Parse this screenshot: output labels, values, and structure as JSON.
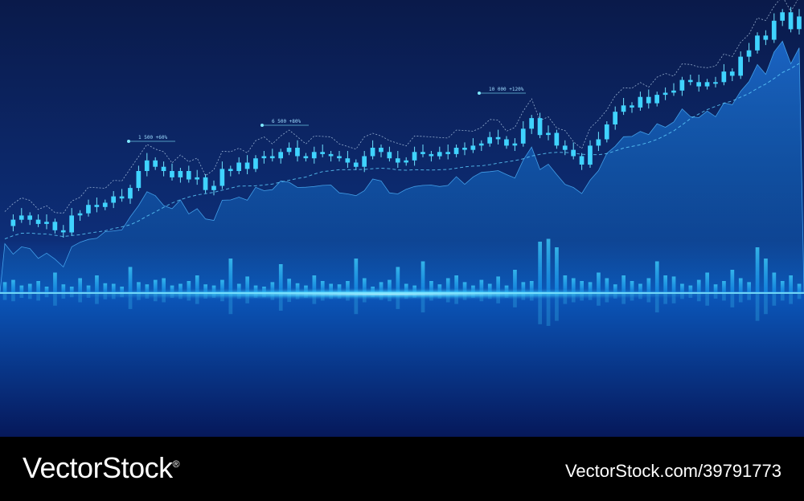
{
  "chart_data": {
    "type": "candlestick",
    "title": "",
    "xlabel": "",
    "ylabel": "",
    "grid": false,
    "colors": {
      "background_top": "#0a1a4a",
      "background_bottom": "#0b3a8c",
      "candle": "#3fd3ff",
      "glow": "#5fe0ff"
    },
    "annotations": [
      {
        "text": "1 500 +60%"
      },
      {
        "text": "6 500 +80%"
      },
      {
        "text": "10 000 +120%"
      }
    ],
    "price": [
      47,
      50,
      52,
      50,
      48,
      49,
      45,
      44,
      52,
      53,
      57,
      56,
      58,
      61,
      60,
      65,
      73,
      78,
      75,
      73,
      70,
      73,
      69,
      70,
      64,
      66,
      74,
      73,
      77,
      74,
      79,
      80,
      79,
      82,
      84,
      80,
      79,
      82,
      81,
      80,
      79,
      77,
      75,
      80,
      84,
      82,
      79,
      77,
      78,
      82,
      81,
      80,
      82,
      81,
      84,
      83,
      85,
      86,
      89,
      88,
      85,
      86,
      93,
      98,
      90,
      91,
      85,
      83,
      80,
      76,
      85,
      88,
      95,
      101,
      104,
      103,
      108,
      105,
      109,
      110,
      111,
      116,
      115,
      113,
      115,
      115,
      120,
      118,
      127,
      130,
      137,
      135,
      144,
      148,
      140,
      146
    ],
    "volume": [
      18,
      22,
      12,
      15,
      20,
      10,
      35,
      14,
      10,
      25,
      12,
      30,
      16,
      15,
      10,
      45,
      18,
      14,
      22,
      25,
      12,
      15,
      20,
      30,
      14,
      12,
      22,
      60,
      15,
      28,
      12,
      10,
      18,
      50,
      24,
      16,
      12,
      30,
      20,
      15,
      14,
      20,
      60,
      25,
      10,
      18,
      22,
      45,
      15,
      12,
      55,
      20,
      14,
      25,
      30,
      18,
      12,
      22,
      15,
      28,
      12,
      40,
      18,
      20,
      90,
      95,
      80,
      30,
      25,
      20,
      18,
      35,
      25,
      14,
      30,
      20,
      15,
      25,
      55,
      30,
      28,
      15,
      12,
      22,
      35,
      14,
      20,
      40,
      25,
      18,
      80,
      60,
      35,
      20,
      30,
      15
    ]
  },
  "footer": {
    "logo": "VectorStock",
    "registered": "®",
    "image_id": "VectorStock.com/39791773"
  }
}
